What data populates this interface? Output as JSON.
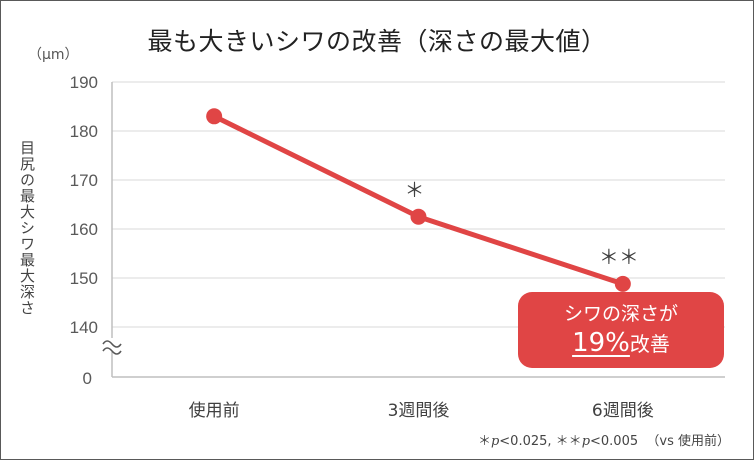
{
  "chart_data": {
    "type": "line",
    "title": "最も大きいシワの改善（深さの最大値）",
    "unit": "（μm）",
    "ylabel": "目尻の最大シワ最大深さ",
    "categories": [
      "使用前",
      "3週間後",
      "6週間後"
    ],
    "series": [
      {
        "values": [
          183,
          162.5,
          148.8
        ],
        "color": "#e04545"
      }
    ],
    "ylim": [
      140,
      190
    ],
    "yticks": [
      "190",
      "180",
      "170",
      "160",
      "150",
      "140"
    ],
    "ybase_label": "0",
    "axis_break": true,
    "grid": true,
    "significance": [
      "",
      "＊",
      "＊＊"
    ],
    "annotation": {
      "line1": "シワの深さが",
      "percent": "19%",
      "suffix": "改善"
    },
    "footnote": {
      "star1": "＊",
      "p1": "p",
      "t1": "<0.025,",
      "star2": "＊＊",
      "p2": "p",
      "t2": "<0.005",
      "vs": "（vs 使用前）"
    }
  }
}
